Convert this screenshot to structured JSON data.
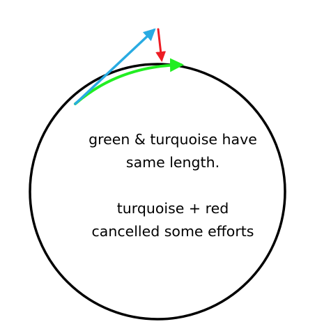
{
  "text": {
    "line1": "green & turquoise have",
    "line2": "same length.",
    "line3": "turquoise + red",
    "line4": "cancelled some efforts"
  },
  "colors": {
    "background": "#ffffff",
    "circle": "#000000",
    "turquoise_arrow": "#29abe2",
    "red_arrow": "#ed1c24",
    "green_arc": "#22ee22",
    "text": "#000000"
  }
}
